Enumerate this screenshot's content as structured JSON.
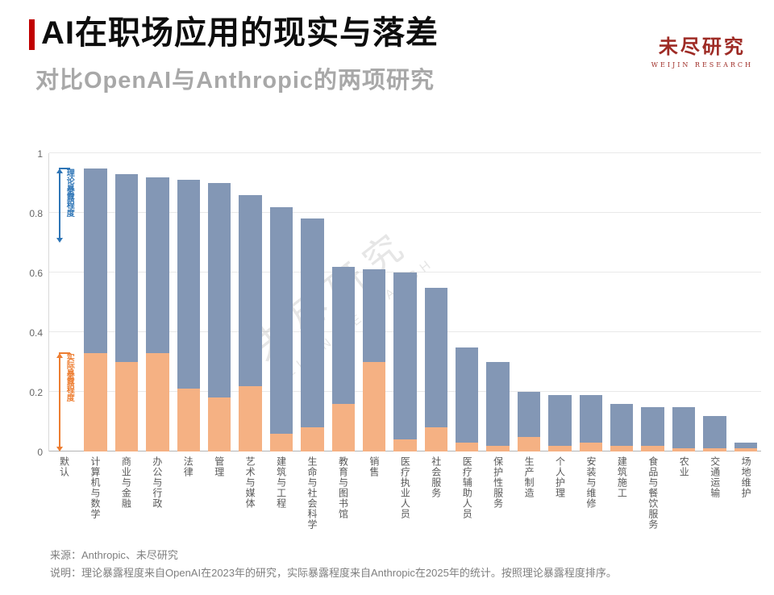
{
  "header": {
    "title": "AI在职场应用的现实与落差",
    "subtitle": "对比OpenAI与Anthropic的两项研究"
  },
  "logo": {
    "name": "未尽研究",
    "subname": "WEIJIN RESEARCH"
  },
  "watermark": {
    "line1": "未尽研究",
    "line2": "WEIJIN RESEARCH"
  },
  "colors": {
    "title_accent": "#C00000",
    "theoretical_bar": "#8397B5",
    "actual_bar": "#F5B183",
    "annotation_blue": "#2E75B6",
    "annotation_orange": "#ED7D31",
    "logo_red": "#9E2B25"
  },
  "chart_data": {
    "type": "bar",
    "title": "AI在职场应用的现实与落差",
    "subtitle": "对比OpenAI与Anthropic的两项研究",
    "categories": [
      "默认",
      "计算机与数学",
      "商业与金融",
      "办公与行政",
      "法律",
      "管理",
      "艺术与媒体",
      "建筑与工程",
      "生命与社会科学",
      "教育与图书馆",
      "销售",
      "医疗执业人员",
      "社会服务",
      "医疗辅助人员",
      "保护性服务",
      "生产制造",
      "个人护理",
      "安装与维修",
      "建筑施工",
      "食品与餐饮服务",
      "农业",
      "交通运输",
      "场地维护"
    ],
    "series": [
      {
        "name": "理论暴露程度",
        "color": "#8397B5",
        "values": [
          null,
          0.95,
          0.93,
          0.92,
          0.91,
          0.9,
          0.86,
          0.82,
          0.78,
          0.62,
          0.61,
          0.6,
          0.55,
          0.35,
          0.3,
          0.2,
          0.19,
          0.19,
          0.16,
          0.15,
          0.15,
          0.12,
          0.03
        ]
      },
      {
        "name": "实际暴露程度",
        "color": "#F5B183",
        "values": [
          null,
          0.33,
          0.3,
          0.33,
          0.21,
          0.18,
          0.22,
          0.06,
          0.08,
          0.16,
          0.3,
          0.04,
          0.08,
          0.03,
          0.02,
          0.05,
          0.02,
          0.03,
          0.02,
          0.02,
          0.01,
          0.01,
          0.01
        ]
      }
    ],
    "ylim": [
      0,
      1
    ],
    "yticks": [
      "0",
      "0.2",
      "0.4",
      "0.6",
      "0.8",
      "1"
    ],
    "ytick_values": [
      0,
      0.2,
      0.4,
      0.6,
      0.8,
      1
    ],
    "grid": true,
    "legend_position": "in-plot-annotations",
    "annotations": [
      {
        "label": "理论暴露程度",
        "color": "#2E75B6",
        "column": 0,
        "from": 0.95,
        "to": 0.7
      },
      {
        "label": "实际暴露程度",
        "color": "#ED7D31",
        "column": 0,
        "from": 0.33,
        "to": 0.0
      }
    ]
  },
  "footer": {
    "source": "来源：Anthropic、未尽研究",
    "note": "说明：理论暴露程度来自OpenAI在2023年的研究，实际暴露程度来自Anthropic在2025年的统计。按照理论暴露程度排序。"
  }
}
